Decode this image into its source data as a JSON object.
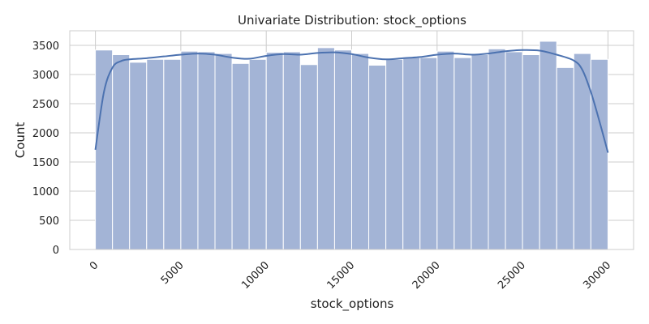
{
  "chart_data": {
    "type": "bar",
    "title": "Univariate Distribution: stock_options",
    "xlabel": "stock_options",
    "ylabel": "Count",
    "xlim": [
      -1500,
      31500
    ],
    "ylim": [
      0,
      3750
    ],
    "x_ticks": [
      "0",
      "5000",
      "10000",
      "15000",
      "20000",
      "25000",
      "30000"
    ],
    "y_ticks": [
      "0",
      "500",
      "1000",
      "1500",
      "2000",
      "2500",
      "3000",
      "3500"
    ],
    "grid": true,
    "bin_start": 0,
    "bin_width": 1000,
    "values": [
      3420,
      3340,
      3210,
      3260,
      3260,
      3400,
      3390,
      3360,
      3190,
      3260,
      3380,
      3390,
      3170,
      3460,
      3420,
      3360,
      3160,
      3260,
      3290,
      3290,
      3400,
      3290,
      3340,
      3440,
      3390,
      3340,
      3570,
      3120,
      3360,
      3260
    ],
    "kde": {
      "x": [
        0,
        500,
        1000,
        1500,
        2000,
        3000,
        4000,
        5000,
        6000,
        7000,
        8000,
        9000,
        10000,
        11000,
        12000,
        13000,
        14000,
        15000,
        16000,
        17000,
        18000,
        19000,
        20000,
        21000,
        22000,
        23000,
        24000,
        25000,
        26000,
        27000,
        28000,
        28500,
        29000,
        29500,
        30000
      ],
      "y": [
        1710,
        2700,
        3120,
        3230,
        3260,
        3280,
        3310,
        3340,
        3360,
        3340,
        3290,
        3270,
        3320,
        3350,
        3340,
        3370,
        3380,
        3350,
        3290,
        3260,
        3280,
        3300,
        3340,
        3360,
        3340,
        3360,
        3400,
        3420,
        3410,
        3340,
        3240,
        3080,
        2700,
        2200,
        1660
      ]
    },
    "colors": {
      "bar_fill": "#a3b4d6",
      "bar_edge": "#ffffff",
      "kde_line": "#4c72b0",
      "grid": "#cccccc",
      "spine": "#cccccc"
    }
  }
}
